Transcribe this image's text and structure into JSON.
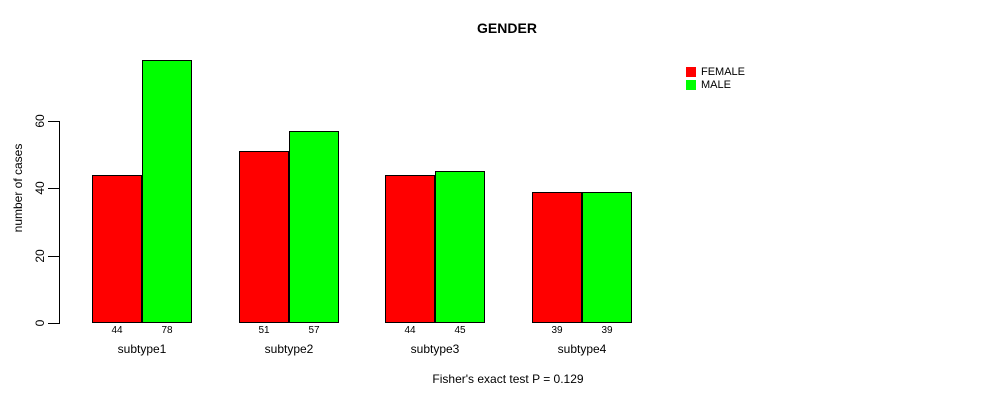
{
  "title": "GENDER",
  "y_axis": {
    "label": "number of cases",
    "ticks": [
      0,
      20,
      40,
      60
    ]
  },
  "legend": {
    "items": [
      {
        "label": "FEMALE",
        "color": "#ff0000"
      },
      {
        "label": "MALE",
        "color": "#00ff00"
      }
    ]
  },
  "caption": "Fisher's exact test P = 0.129",
  "chart_data": {
    "type": "bar",
    "title": "GENDER",
    "categories": [
      "subtype1",
      "subtype2",
      "subtype3",
      "subtype4"
    ],
    "series": [
      {
        "name": "FEMALE",
        "color": "#ff0000",
        "values": [
          44,
          51,
          44,
          39
        ]
      },
      {
        "name": "MALE",
        "color": "#00ff00",
        "values": [
          78,
          57,
          45,
          39
        ]
      }
    ],
    "xlabel": "",
    "ylabel": "number of cases",
    "ylim": [
      0,
      78
    ],
    "y_ticks": [
      0,
      20,
      40,
      60
    ],
    "grid": false,
    "legend_position": "top-right",
    "bar_value_labels": true,
    "annotation": "Fisher's exact test P = 0.129"
  }
}
